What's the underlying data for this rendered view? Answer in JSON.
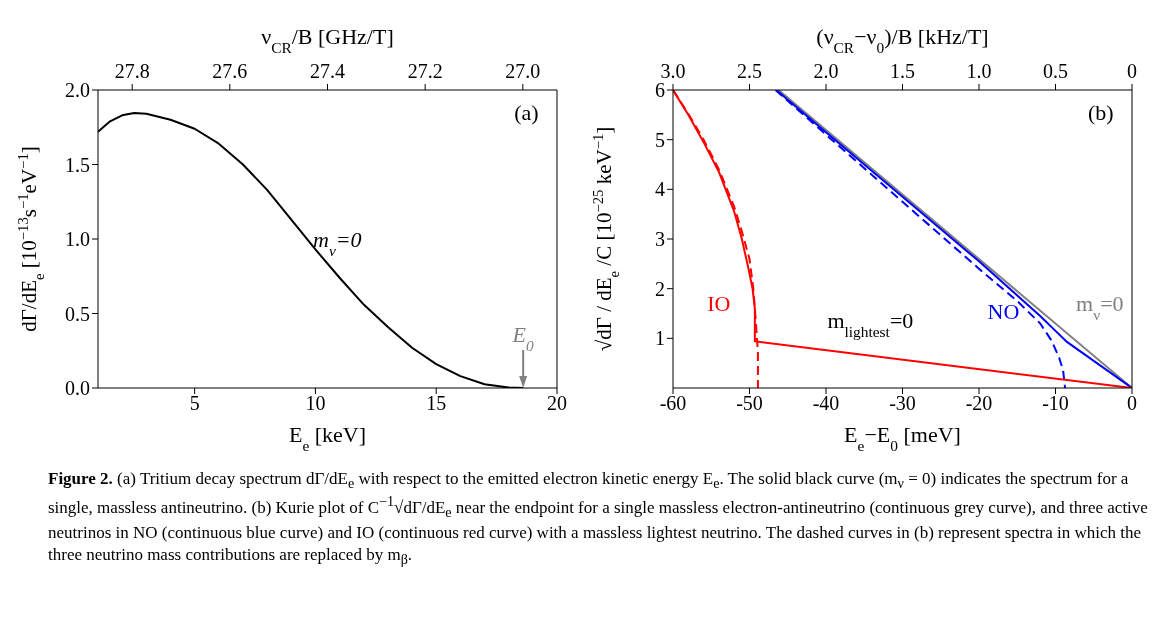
{
  "chart_data": [
    {
      "type": "line",
      "xlabel": "E$_{e}$ [keV]",
      "ylabel": "dΓ/dE$_{e}$ [10$^{−13}$s$^{−1}$eV$^{−1}$]",
      "x2label": "ν$_{CR}$/B [GHz/T]",
      "xlim": [
        1,
        20
      ],
      "xticks": [
        5,
        10,
        15,
        20
      ],
      "ylim": [
        0,
        2
      ],
      "yticks": [
        {
          "value": 0,
          "label": "0.0"
        },
        {
          "value": 0.5,
          "label": "0.5"
        },
        {
          "value": 1,
          "label": "1.0"
        },
        {
          "value": 1.5,
          "label": "1.5"
        },
        {
          "value": 2,
          "label": "2.0"
        }
      ],
      "x2lim": [
        27.87,
        26.93
      ],
      "x2ticks": [
        27.8,
        27.6,
        27.4,
        27.2,
        {
          "value": 27,
          "label": "27.0"
        }
      ],
      "series": [
        {
          "color": "#000000",
          "x": [
            1,
            1.5,
            2,
            2.5,
            3,
            4,
            5,
            6,
            7,
            8,
            9,
            10,
            11,
            12,
            13,
            14,
            15,
            16,
            17,
            18,
            18.6
          ],
          "values": [
            1.72,
            1.79,
            1.83,
            1.845,
            1.84,
            1.8,
            1.74,
            1.64,
            1.5,
            1.33,
            1.13,
            0.93,
            0.74,
            0.56,
            0.41,
            0.27,
            0.16,
            0.08,
            0.025,
            0.003,
            0
          ]
        }
      ],
      "annotations": [
        "(a)",
        {
          "text": "m$_{ν}$=0",
          "x": 9.9,
          "y": 1.0
        },
        {
          "text": "E$_{0}$",
          "x": 18.6,
          "y": 0
        }
      ]
    },
    {
      "type": "line",
      "xlabel": "E$_{e}$−E$_{0}$ [meV]",
      "ylabel": "√dΓ / dE$_{e}$ /C [10$^{−25}$ keV$^{−1}$]",
      "x2label": "(ν$_{CR}$−ν$_{0}$)/B [kHz/T]",
      "xlim": [
        -60,
        0
      ],
      "xticks": [
        -60,
        -50,
        -40,
        -30,
        -20,
        -10,
        0
      ],
      "ylim": [
        0,
        6
      ],
      "yticks": [
        1,
        2,
        3,
        4,
        5,
        6
      ],
      "x2lim": [
        3,
        0
      ],
      "x2ticks": [
        {
          "value": 3,
          "label": "3.0"
        },
        2.5,
        {
          "value": 2,
          "label": "2.0"
        },
        1.5,
        {
          "value": 1,
          "label": "1.0"
        },
        0.5,
        0
      ],
      "series": [
        {
          "name": "m$_{ν}$=0",
          "color": "#808080",
          "x": [
            -46.2,
            0
          ],
          "values": [
            6,
            0
          ]
        },
        {
          "name": "NO",
          "color": "#0000ff",
          "x": [
            -46.5,
            -40,
            -30,
            -20,
            -12,
            -10,
            -8.6,
            0
          ],
          "values": [
            6,
            5.15,
            3.85,
            2.55,
            1.45,
            1.15,
            0.94,
            0
          ]
        },
        {
          "color": "#0000ff",
          "line_style": "dashed",
          "x": [
            -46.6,
            -40,
            -30,
            -20,
            -15,
            -12,
            -10.5,
            -9.5,
            -9,
            -8.75
          ],
          "values": [
            6,
            5.1,
            3.75,
            2.4,
            1.75,
            1.3,
            0.95,
            0.6,
            0.35,
            0
          ]
        },
        {
          "name": "IO",
          "color": "#ff0000",
          "x": [
            -60,
            -58,
            -56,
            -54,
            -52,
            -51,
            -50.2,
            -49.6,
            -49.3,
            -49.3,
            0
          ],
          "values": [
            6,
            5.5,
            4.95,
            4.35,
            3.55,
            3.0,
            2.45,
            2.0,
            1.6,
            0.94,
            0
          ]
        },
        {
          "color": "#ff0000",
          "line_style": "dashed",
          "x": [
            -60,
            -58,
            -56,
            -54,
            -52,
            -51,
            -50,
            -49.5,
            -49.2,
            -48.9,
            -48.9
          ],
          "values": [
            6,
            5.52,
            5.0,
            4.4,
            3.65,
            3.15,
            2.6,
            2.0,
            1.4,
            0.7,
            0
          ]
        }
      ],
      "annotations": [
        "(b)",
        "m$_{lightest}$=0"
      ]
    },
    {
      "type": "other",
      "title": "Figure 2.",
      "annotations": [
        "(a) Tritium decay spectrum dΓ/dE$_{e}$ with respect to the emitted electron kinetic energy E$_{e}$. The solid black curve (m$_{ν}$ = 0) indicates the spectrum for a single, massless antineutrino. (b) Kurie plot of C$^{−1}$√dΓ/dE$_{e}$ near the endpoint for a single massless electron-antineutrino (continuous grey curve), and three active neutrinos in NO (continuous blue curve) and IO (continuous red curve) with a massless lightest neutrino. The dashed curves in (b) represent spectra in which the three neutrino mass contributions are replaced by m$_{β}$."
      ]
    }
  ]
}
